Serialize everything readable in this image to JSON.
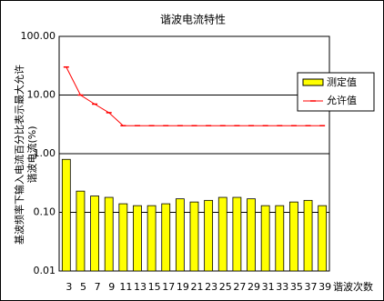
{
  "chart_data": {
    "type": "bar-line",
    "title": "谐波电流特性",
    "ylabel": [
      "基波频率下输入电流百分比表示最大允许",
      "谐波电流(%)"
    ],
    "xlabel": "谐波次数",
    "categories": [
      3,
      5,
      7,
      9,
      11,
      13,
      15,
      17,
      19,
      21,
      23,
      25,
      27,
      29,
      31,
      33,
      35,
      37,
      39
    ],
    "log_scale": true,
    "grid": true,
    "legend": "right",
    "ylim": [
      0.01,
      100
    ],
    "yticks": [
      {
        "value": 0.01,
        "label": "0.01"
      },
      {
        "value": 0.1,
        "label": "0.10"
      },
      {
        "value": 1,
        "label": "1.00"
      },
      {
        "value": 10,
        "label": "10.00"
      },
      {
        "value": 100,
        "label": "100.00"
      }
    ],
    "series": [
      {
        "name": "测定值",
        "type": "bar",
        "color": "#ffff00",
        "values": [
          0.8,
          0.23,
          0.19,
          0.18,
          0.14,
          0.13,
          0.13,
          0.14,
          0.17,
          0.15,
          0.16,
          0.18,
          0.18,
          0.17,
          0.13,
          0.13,
          0.15,
          0.16,
          0.13
        ]
      },
      {
        "name": "允许值",
        "type": "line",
        "color": "#ff0000",
        "values": [
          30,
          10,
          7,
          5,
          3,
          3,
          3,
          3,
          3,
          3,
          3,
          3,
          3,
          3,
          3,
          3,
          3,
          3,
          3
        ]
      }
    ]
  }
}
